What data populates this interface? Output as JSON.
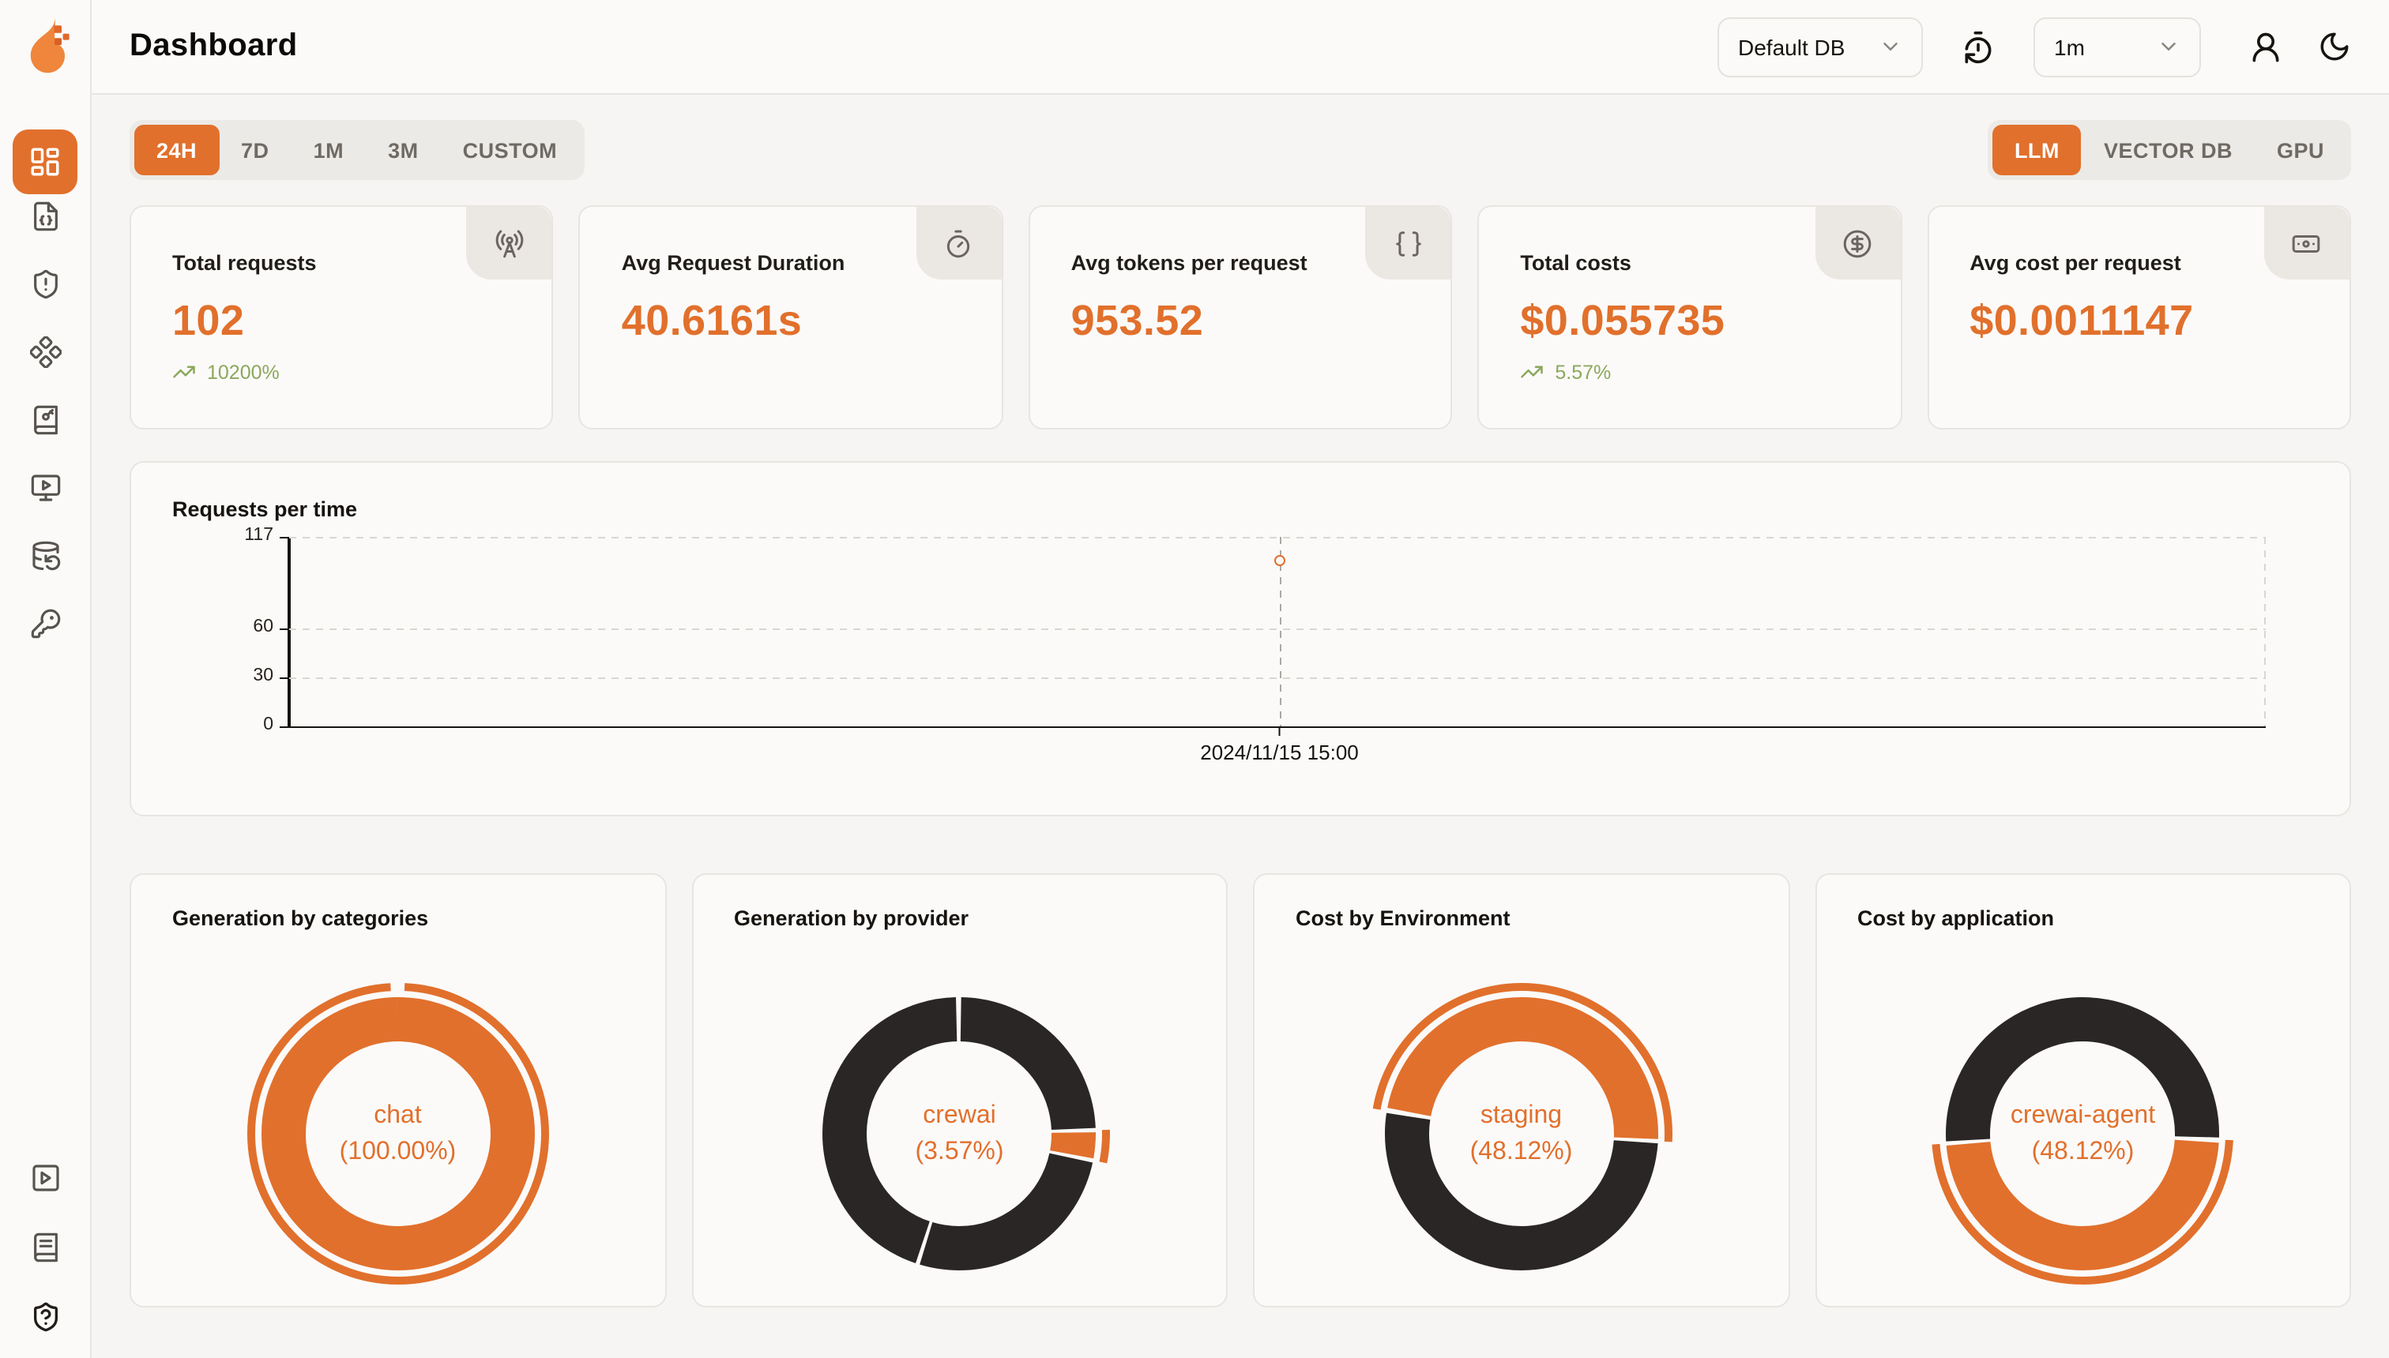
{
  "app": {
    "title": "Dashboard",
    "logo": "openlit-flame-logo"
  },
  "colors": {
    "accent": "#E1702C",
    "dark": "#2B2626",
    "green": "#8CA85B",
    "grid": "#D9D6D1",
    "hover_line": "#ACA8A2",
    "axis": "#17130F"
  },
  "topbar": {
    "database_selector": {
      "value": "Default DB",
      "icon": "chevron-down-icon"
    },
    "refresh_icon": "timer-reset-icon",
    "interval_selector": {
      "value": "1m",
      "icon": "chevron-down-icon"
    },
    "user_icon": "user-icon",
    "theme_icon": "moon-icon"
  },
  "filters": {
    "time_ranges": [
      "24H",
      "7D",
      "1M",
      "3M",
      "CUSTOM"
    ],
    "active_time_range": "24H",
    "signal_tabs": [
      "LLM",
      "VECTOR DB",
      "GPU"
    ],
    "active_signal_tab": "LLM"
  },
  "sidebar": {
    "items": [
      {
        "name": "dashboard",
        "icon": "layout-dashboard-icon",
        "active": true
      },
      {
        "name": "requests",
        "icon": "file-code-icon"
      },
      {
        "name": "exceptions",
        "icon": "shield-alert-icon"
      },
      {
        "name": "prompt-hub",
        "icon": "component-icon"
      },
      {
        "name": "vault",
        "icon": "book-key-icon"
      },
      {
        "name": "playground",
        "icon": "monitor-play-icon"
      },
      {
        "name": "database-config",
        "icon": "database-backup-icon"
      },
      {
        "name": "api-keys",
        "icon": "key-icon"
      }
    ],
    "footer_items": [
      {
        "name": "getting-started",
        "icon": "square-play-icon"
      },
      {
        "name": "documentation",
        "icon": "book-icon"
      },
      {
        "name": "support",
        "icon": "shield-question-icon"
      }
    ]
  },
  "stats": [
    {
      "label": "Total requests",
      "value": "102",
      "trend": "10200%",
      "icon": "radio-tower-icon"
    },
    {
      "label": "Avg Request Duration",
      "value": "40.6161s",
      "icon": "timer-icon"
    },
    {
      "label": "Avg tokens per request",
      "value": "953.52",
      "icon": "braces-icon"
    },
    {
      "label": "Total costs",
      "value": "$0.055735",
      "trend": "5.57%",
      "icon": "circle-dollar-icon"
    },
    {
      "label": "Avg cost per request",
      "value": "$0.0011147",
      "icon": "banknote-icon"
    }
  ],
  "chart_data": {
    "requests_per_time": {
      "type": "line",
      "title": "Requests per time",
      "ylim": [
        0,
        117
      ],
      "y_ticks": [
        117,
        60,
        30,
        0
      ],
      "x_ticks": [
        "2024/11/15 15:00"
      ],
      "points": [
        {
          "x": "2024/11/15 15:00",
          "y": 102
        }
      ],
      "grid": "dashed",
      "single_point_fraction": 0.501
    },
    "donuts": [
      {
        "type": "pie",
        "title": "Generation by categories",
        "center_label": [
          "chat",
          "(100.00%)"
        ],
        "rotation_pct": 0,
        "segments": [
          {
            "label": "chat",
            "pct": 100,
            "color": "accent"
          }
        ],
        "highlight": {
          "start_pct": 0.7,
          "pct": 98.6
        }
      },
      {
        "type": "pie",
        "title": "Generation by provider",
        "center_label": [
          "crewai",
          "(3.57%)"
        ],
        "rotation_pct": 0,
        "segments": [
          {
            "label": "",
            "pct": 24.6,
            "color": "dark"
          },
          {
            "label": "crewai",
            "pct": 3.57,
            "color": "accent"
          },
          {
            "label": "",
            "pct": 26.8,
            "color": "dark"
          },
          {
            "label": "",
            "pct": 45.03,
            "color": "dark"
          }
        ],
        "highlight": {
          "start_pct": 24.6,
          "pct": 3.57
        }
      },
      {
        "type": "pie",
        "title": "Cost by Environment",
        "center_label": [
          "staging",
          "(48.12%)"
        ],
        "rotation_pct": 77.8,
        "segments": [
          {
            "label": "staging",
            "pct": 48.12,
            "color": "accent"
          },
          {
            "label": "",
            "pct": 51.88,
            "color": "dark"
          }
        ],
        "highlight": {
          "start_pct": 0,
          "pct": 48.12
        }
      },
      {
        "type": "pie",
        "title": "Cost by application",
        "center_label": [
          "crewai-agent",
          "(48.12%)"
        ],
        "rotation_pct": 25.8,
        "segments": [
          {
            "label": "crewai-agent",
            "pct": 48.12,
            "color": "accent"
          },
          {
            "label": "",
            "pct": 51.88,
            "color": "dark"
          }
        ],
        "highlight": {
          "start_pct": 0,
          "pct": 48.12
        }
      }
    ]
  }
}
